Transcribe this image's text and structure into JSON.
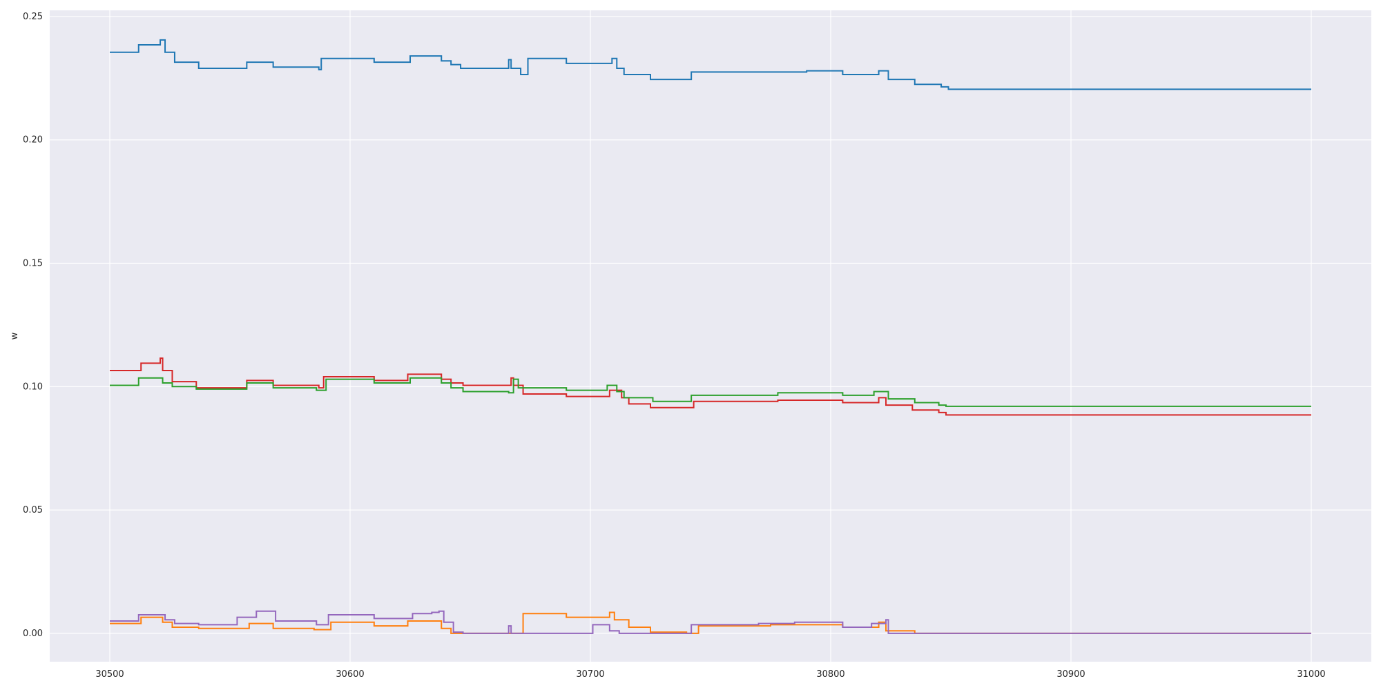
{
  "chart_data": {
    "type": "line",
    "step": "post",
    "title": "",
    "xlabel": "",
    "ylabel": "w",
    "xlim": [
      30475,
      31025
    ],
    "ylim": [
      -0.0115,
      0.2525
    ],
    "xticks": [
      30500,
      30600,
      30700,
      30800,
      30900,
      31000
    ],
    "xtick_labels": [
      "30500",
      "30600",
      "30700",
      "30800",
      "30900",
      "31000"
    ],
    "yticks": [
      0.0,
      0.05,
      0.1,
      0.15,
      0.2,
      0.25
    ],
    "ytick_labels": [
      "0.00",
      "0.05",
      "0.10",
      "0.15",
      "0.20",
      "0.25"
    ],
    "grid": true,
    "background": "#eaeaf2",
    "series": [
      {
        "color": "#1f77b4",
        "x": [
          30500,
          30512,
          30521,
          30523,
          30527,
          30537,
          30557,
          30568,
          30587,
          30588,
          30610,
          30625,
          30638,
          30642,
          30646,
          30666,
          30667,
          30671,
          30674,
          30690,
          30709,
          30711,
          30714,
          30725,
          30742,
          30778,
          30790,
          30805,
          30820,
          30824,
          30835,
          30846,
          30849,
          31000
        ],
        "y": [
          0.2355,
          0.2385,
          0.2405,
          0.2355,
          0.2315,
          0.229,
          0.2315,
          0.2295,
          0.2285,
          0.233,
          0.2315,
          0.234,
          0.232,
          0.2305,
          0.229,
          0.2325,
          0.229,
          0.2265,
          0.233,
          0.231,
          0.233,
          0.229,
          0.2265,
          0.2245,
          0.2275,
          0.2275,
          0.228,
          0.2265,
          0.228,
          0.2245,
          0.2225,
          0.2215,
          0.2205,
          0.2205
        ]
      },
      {
        "color": "#d62728",
        "x": [
          30500,
          30513,
          30521,
          30522,
          30526,
          30536,
          30557,
          30568,
          30587,
          30589,
          30610,
          30624,
          30638,
          30642,
          30647,
          30667,
          30668,
          30672,
          30690,
          30708,
          30713,
          30716,
          30725,
          30743,
          30778,
          30805,
          30820,
          30823,
          30834,
          30845,
          30848,
          31000
        ],
        "y": [
          0.1065,
          0.1095,
          0.1115,
          0.1065,
          0.102,
          0.0995,
          0.1025,
          0.1005,
          0.0995,
          0.104,
          0.1025,
          0.105,
          0.103,
          0.1015,
          0.1005,
          0.1035,
          0.1005,
          0.097,
          0.096,
          0.0985,
          0.0955,
          0.093,
          0.0915,
          0.094,
          0.0945,
          0.0935,
          0.0955,
          0.0925,
          0.0905,
          0.0895,
          0.0885,
          0.0885
        ]
      },
      {
        "color": "#2ca02c",
        "x": [
          30500,
          30512,
          30522,
          30526,
          30536,
          30557,
          30568,
          30586,
          30590,
          30610,
          30625,
          30638,
          30642,
          30647,
          30666,
          30668,
          30670,
          30690,
          30707,
          30711,
          30714,
          30726,
          30742,
          30778,
          30805,
          30818,
          30824,
          30835,
          30845,
          30848,
          31000
        ],
        "y": [
          0.1005,
          0.1035,
          0.1015,
          0.1,
          0.099,
          0.1015,
          0.0995,
          0.0985,
          0.103,
          0.1015,
          0.1035,
          0.1015,
          0.0995,
          0.098,
          0.0975,
          0.103,
          0.0995,
          0.0985,
          0.1005,
          0.098,
          0.0955,
          0.094,
          0.0965,
          0.0975,
          0.0965,
          0.098,
          0.095,
          0.0935,
          0.0925,
          0.092,
          0.092
        ]
      },
      {
        "color": "#ff7f0e",
        "x": [
          30500,
          30513,
          30522,
          30526,
          30537,
          30558,
          30568,
          30585,
          30592,
          30610,
          30624,
          30638,
          30642,
          30646,
          30672,
          30690,
          30708,
          30710,
          30716,
          30725,
          30740,
          30745,
          30775,
          30805,
          30820,
          30823,
          30835,
          31000
        ],
        "y": [
          0.004,
          0.0065,
          0.0045,
          0.0025,
          0.002,
          0.004,
          0.002,
          0.0015,
          0.0045,
          0.003,
          0.005,
          0.002,
          0.0,
          0.0,
          0.008,
          0.0065,
          0.0085,
          0.0055,
          0.0025,
          0.0005,
          0.0,
          0.003,
          0.0035,
          0.0025,
          0.0045,
          0.001,
          0.0,
          0.0
        ]
      },
      {
        "color": "#9467bd",
        "x": [
          30500,
          30512,
          30523,
          30527,
          30537,
          30553,
          30561,
          30569,
          30586,
          30591,
          30610,
          30626,
          30634,
          30637,
          30639,
          30643,
          30647,
          30666,
          30667,
          30672,
          30701,
          30708,
          30712,
          30730,
          30742,
          30770,
          30785,
          30805,
          30817,
          30823,
          30824,
          31000
        ],
        "y": [
          0.005,
          0.0075,
          0.0055,
          0.004,
          0.0035,
          0.0065,
          0.009,
          0.005,
          0.0035,
          0.0075,
          0.006,
          0.008,
          0.0085,
          0.009,
          0.0045,
          0.0005,
          0.0,
          0.003,
          0.0,
          0.0,
          0.0035,
          0.001,
          0.0,
          0.0,
          0.0035,
          0.004,
          0.0045,
          0.0025,
          0.004,
          0.0055,
          0.0,
          0.0
        ]
      }
    ]
  }
}
